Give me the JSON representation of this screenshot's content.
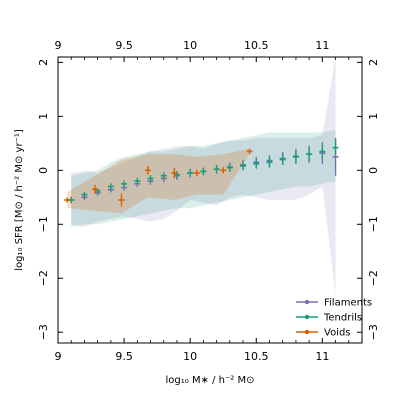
{
  "chart_data": {
    "type": "scatter",
    "title": "",
    "xlabel": "log₁₀ M∗ / h⁻² M⊙",
    "ylabel": "log₁₀ SFR [M⊙ / h⁻² M⊙ yr⁻¹]",
    "xlim": [
      9.0,
      11.3
    ],
    "ylim": [
      -3.2,
      2.1
    ],
    "xticks": [
      9,
      9.5,
      10,
      10.5,
      11
    ],
    "xtick_labels": [
      "9",
      "9.5",
      "10",
      "10.5",
      "11"
    ],
    "xticks_top": [
      9,
      9.5,
      10,
      10.5,
      11
    ],
    "xtick_labels_top": [
      "9",
      "9.5",
      "10",
      "10.5",
      "11"
    ],
    "yticks": [
      -3,
      -2,
      -1,
      0,
      1,
      2
    ],
    "ytick_labels": [
      "−3",
      "−2",
      "−1",
      "0",
      "1",
      "2"
    ],
    "yticks_right": [
      -3,
      -2,
      -1,
      0,
      1,
      2
    ],
    "ytick_labels_right": [
      "−3",
      "−2",
      "−1",
      "0",
      "1",
      "2"
    ],
    "grid": false,
    "legend_position": "bottom-right",
    "series": [
      {
        "name": "Filaments",
        "color": "#7570b3",
        "x": [
          9.1,
          9.2,
          9.3,
          9.4,
          9.5,
          9.6,
          9.7,
          9.8,
          9.9,
          10.0,
          10.1,
          10.2,
          10.3,
          10.4,
          10.5,
          10.6,
          10.7,
          10.8,
          10.9,
          11.0,
          11.1
        ],
        "y": [
          -0.55,
          -0.5,
          -0.42,
          -0.36,
          -0.32,
          -0.25,
          -0.2,
          -0.15,
          -0.1,
          -0.05,
          -0.02,
          0.02,
          0.06,
          0.1,
          0.15,
          0.18,
          0.22,
          0.26,
          0.3,
          0.32,
          0.25
        ],
        "err": [
          0.06,
          0.05,
          0.05,
          0.05,
          0.06,
          0.06,
          0.07,
          0.07,
          0.08,
          0.08,
          0.07,
          0.08,
          0.08,
          0.09,
          0.1,
          0.1,
          0.12,
          0.14,
          0.16,
          0.2,
          0.35
        ],
        "band_low": [
          -1.0,
          -1.05,
          -0.95,
          -0.9,
          -0.85,
          -0.9,
          -0.95,
          -0.9,
          -0.75,
          -0.55,
          -0.6,
          -0.65,
          -0.5,
          -0.45,
          -0.5,
          -0.55,
          -0.55,
          -0.55,
          -0.45,
          -0.3,
          -2.3
        ],
        "band_high": [
          -0.05,
          0.0,
          -0.05,
          0.05,
          0.15,
          0.25,
          0.35,
          0.4,
          0.45,
          0.45,
          0.4,
          0.5,
          0.55,
          0.55,
          0.6,
          0.6,
          0.6,
          0.6,
          0.6,
          0.65,
          2.1
        ]
      },
      {
        "name": "Tendrils",
        "color": "#1b9e77",
        "x": [
          9.1,
          9.2,
          9.3,
          9.4,
          9.5,
          9.6,
          9.7,
          9.8,
          9.9,
          10.0,
          10.1,
          10.2,
          10.3,
          10.4,
          10.5,
          10.6,
          10.7,
          10.8,
          10.9,
          11.0,
          11.1
        ],
        "y": [
          -0.55,
          -0.45,
          -0.38,
          -0.3,
          -0.25,
          -0.2,
          -0.15,
          -0.1,
          -0.08,
          -0.05,
          -0.02,
          0.02,
          0.05,
          0.08,
          0.12,
          0.15,
          0.2,
          0.25,
          0.3,
          0.35,
          0.42
        ],
        "err": [
          0.06,
          0.05,
          0.05,
          0.06,
          0.06,
          0.06,
          0.06,
          0.06,
          0.07,
          0.07,
          0.07,
          0.08,
          0.08,
          0.08,
          0.09,
          0.1,
          0.1,
          0.11,
          0.12,
          0.12,
          0.14
        ],
        "band_low": [
          -1.05,
          -1.0,
          -1.0,
          -0.95,
          -0.9,
          -0.85,
          -0.8,
          -0.75,
          -0.7,
          -0.7,
          -0.65,
          -0.6,
          -0.55,
          -0.5,
          -0.45,
          -0.4,
          -0.35,
          -0.3,
          -0.3,
          -0.25,
          -0.2
        ],
        "band_high": [
          -0.1,
          -0.05,
          0.0,
          0.15,
          0.25,
          0.3,
          0.35,
          0.35,
          0.4,
          0.45,
          0.45,
          0.5,
          0.55,
          0.6,
          0.65,
          0.7,
          0.7,
          0.7,
          0.7,
          0.7,
          0.75
        ]
      },
      {
        "name": "Voids",
        "color": "#d95f02",
        "x": [
          9.07,
          9.28,
          9.48,
          9.68,
          9.88,
          10.05,
          10.25,
          10.45
        ],
        "y": [
          -0.55,
          -0.35,
          -0.55,
          0.0,
          -0.05,
          -0.05,
          0.0,
          0.35
        ],
        "err": [
          0.05,
          0.08,
          0.12,
          0.08,
          0.1,
          0.06,
          0.06,
          0.05
        ],
        "band_low": [
          -0.7,
          -0.75,
          -0.8,
          -0.5,
          -0.55,
          -0.45,
          -0.45,
          0.3
        ],
        "band_high": [
          -0.4,
          -0.1,
          0.2,
          0.3,
          0.3,
          0.25,
          0.3,
          0.4
        ]
      }
    ]
  }
}
